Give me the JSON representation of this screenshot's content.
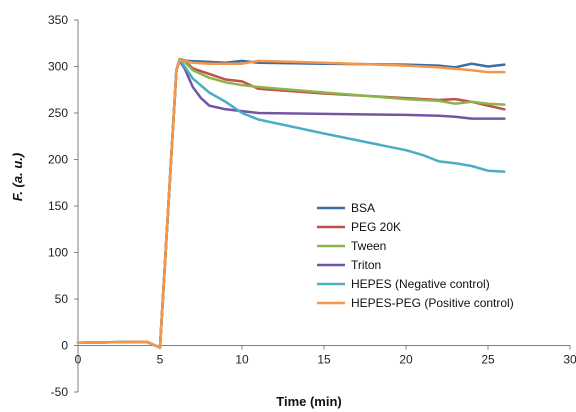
{
  "chart_data": {
    "type": "line",
    "title": "",
    "xlabel": "Time (min)",
    "ylabel": "F. (a. u.)",
    "xlim": [
      0,
      30
    ],
    "ylim": [
      -50,
      350
    ],
    "xticks": [
      0,
      5,
      10,
      15,
      20,
      25,
      30
    ],
    "yticks": [
      -50,
      0,
      50,
      100,
      150,
      200,
      250,
      300,
      350
    ],
    "grid": false,
    "legend_position": "center-right",
    "series": [
      {
        "name": "BSA",
        "color": "#3a6ea5",
        "x": [
          0,
          4.2,
          4.7,
          5.0,
          6.0,
          6.2,
          6.6,
          8,
          9,
          10,
          11,
          15,
          20,
          22,
          23,
          24,
          25,
          26
        ],
        "y": [
          3,
          4,
          0,
          -2,
          296,
          308,
          306,
          305,
          304,
          306,
          304,
          303,
          302,
          301,
          299,
          303,
          300,
          302
        ]
      },
      {
        "name": "PEG 20K",
        "color": "#c0504d",
        "x": [
          0,
          4.2,
          4.7,
          5.0,
          6.0,
          6.2,
          6.5,
          7,
          8,
          9,
          10,
          11,
          15,
          20,
          22,
          23,
          24,
          25,
          26
        ],
        "y": [
          3,
          4,
          0,
          -2,
          296,
          308,
          306,
          298,
          292,
          286,
          284,
          276,
          271,
          266,
          264,
          265,
          262,
          258,
          254
        ]
      },
      {
        "name": "Tween",
        "color": "#8db44a",
        "x": [
          0,
          4.2,
          4.7,
          5.0,
          6.0,
          6.2,
          6.5,
          7,
          8,
          9,
          10,
          11,
          15,
          20,
          22,
          23,
          24,
          25,
          26
        ],
        "y": [
          3,
          4,
          0,
          -2,
          296,
          308,
          305,
          296,
          288,
          283,
          280,
          278,
          272,
          265,
          263,
          260,
          262,
          260,
          259
        ]
      },
      {
        "name": "Triton",
        "color": "#7356a3",
        "x": [
          0,
          4.2,
          4.7,
          5.0,
          6.0,
          6.2,
          6.5,
          7,
          7.5,
          8,
          9,
          10,
          11,
          15,
          20,
          22,
          23,
          24,
          25,
          26
        ],
        "y": [
          3,
          4,
          0,
          -2,
          296,
          306,
          298,
          278,
          266,
          258,
          254,
          252,
          250,
          249,
          248,
          247,
          246,
          244,
          244,
          244
        ]
      },
      {
        "name": "HEPES (Negative control)",
        "color": "#4bacc6",
        "x": [
          0,
          4.2,
          4.7,
          5.0,
          6.0,
          6.2,
          6.5,
          7,
          8,
          9,
          10,
          11,
          15,
          20,
          21,
          22,
          23,
          24,
          25,
          26
        ],
        "y": [
          3,
          4,
          0,
          -2,
          296,
          307,
          300,
          287,
          272,
          262,
          250,
          243,
          228,
          210,
          205,
          198,
          196,
          193,
          188,
          187
        ]
      },
      {
        "name": "HEPES-PEG (Positive control)",
        "color": "#f79646",
        "x": [
          0,
          4.2,
          4.7,
          5.0,
          6.0,
          6.2,
          7,
          8,
          10,
          11,
          15,
          20,
          22,
          24,
          25,
          26
        ],
        "y": [
          3,
          4,
          0,
          -2,
          296,
          307,
          304,
          303,
          303,
          306,
          304,
          301,
          299,
          296,
          294,
          294
        ]
      }
    ]
  }
}
